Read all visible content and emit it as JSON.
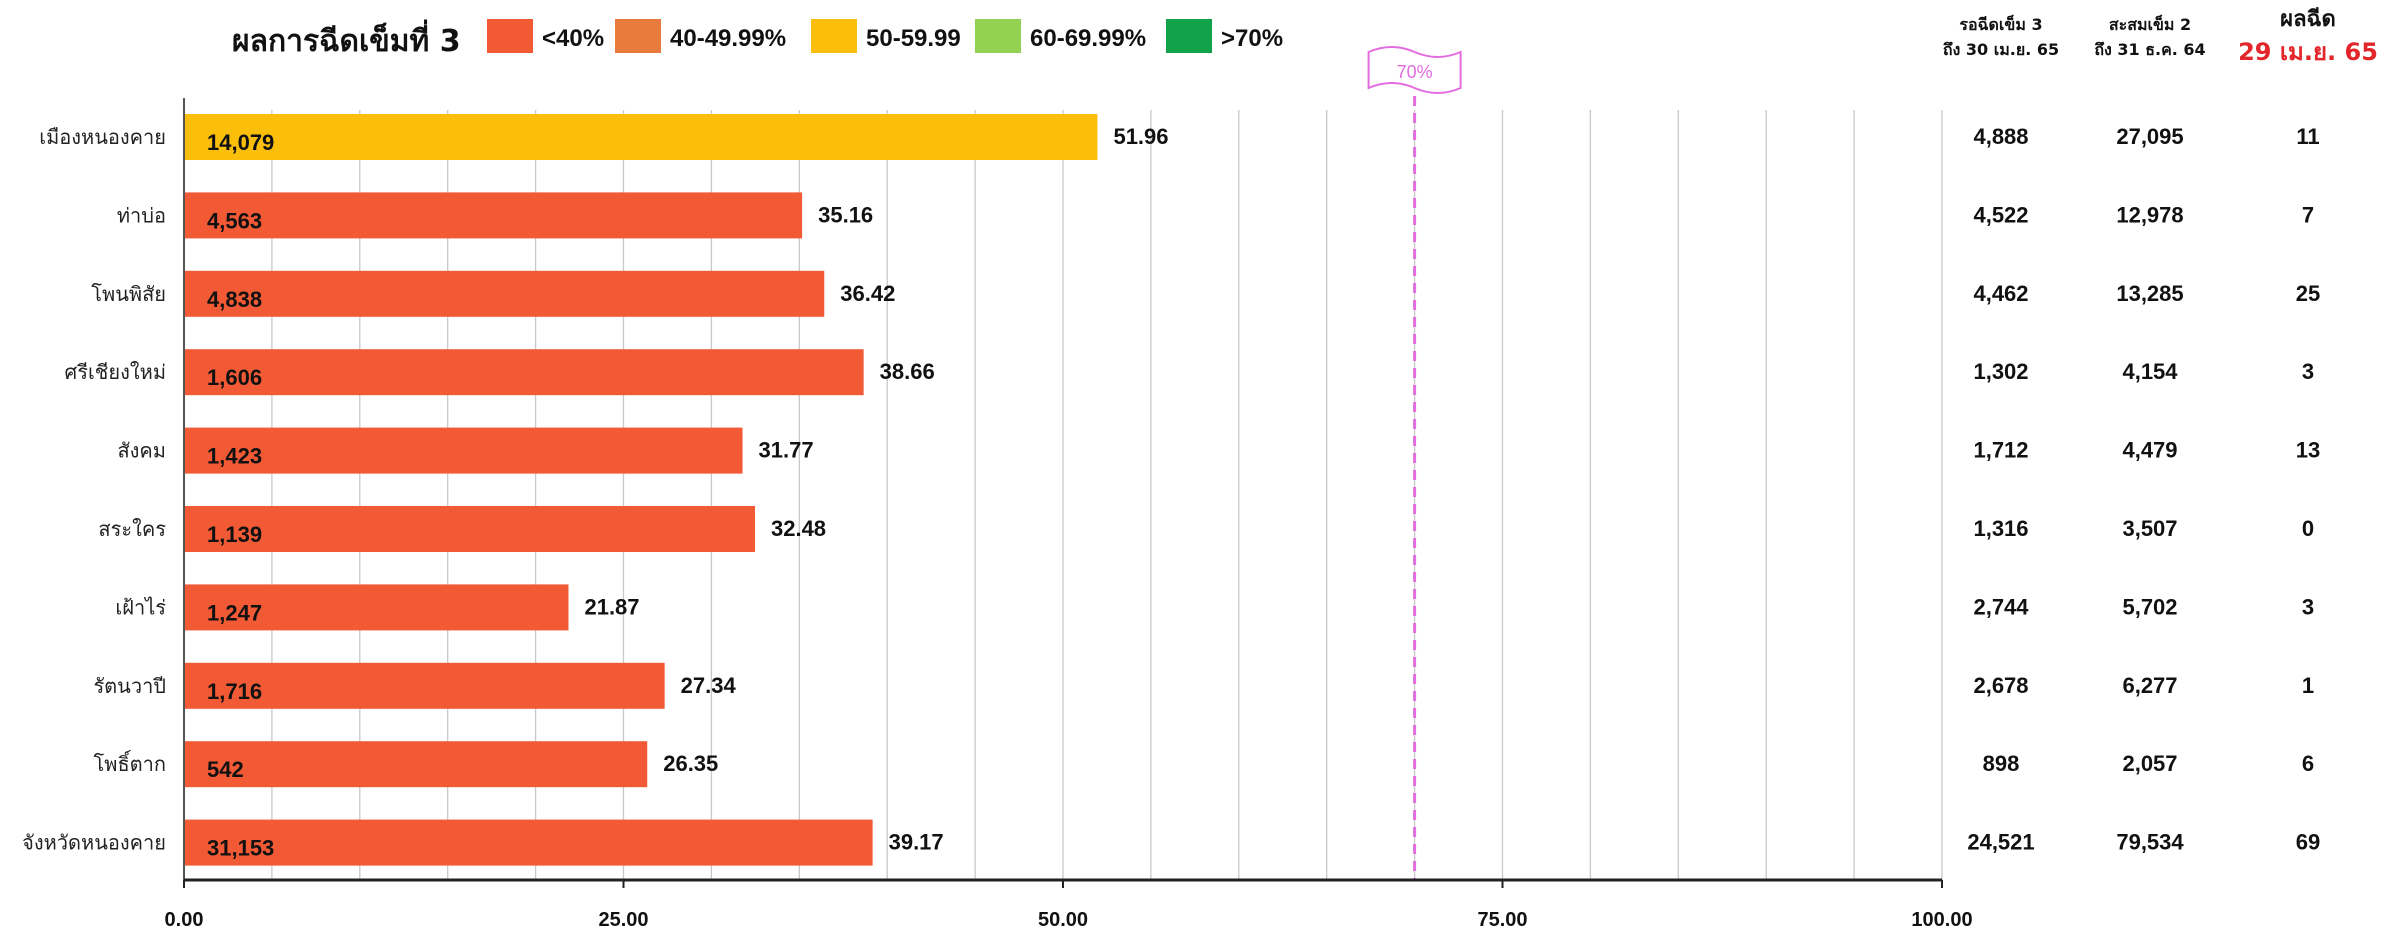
{
  "title": "ผลการฉีดเข็มที่ 3",
  "legend": [
    {
      "label": "<40%",
      "color": "#f15a35"
    },
    {
      "label": "40-49.99%",
      "color": "#e97b3d"
    },
    {
      "label": "50-59.99",
      "color": "#fbbf0b"
    },
    {
      "label": "60-69.99%",
      "color": "#93d153"
    },
    {
      "label": ">70%",
      "color": "#12a34a"
    }
  ],
  "reference_line": {
    "value": 70,
    "label": "70%",
    "color": "#e46be0"
  },
  "columns": {
    "col1": {
      "line1": "รอฉีดเข็ม 3",
      "line2": "ถึง 30 เม.ย. 65"
    },
    "col2": {
      "line1": "สะสมเข็ม 2",
      "line2": "ถึง 31 ธ.ค. 64"
    },
    "col3": {
      "line1": "ผลฉีด",
      "line2": "29 เม.ย. 65"
    }
  },
  "chart_data": {
    "type": "bar",
    "orientation": "horizontal",
    "categories": [
      "เมืองหนองคาย",
      "ท่าบ่อ",
      "โพนพิสัย",
      "ศรีเชียงใหม่",
      "สังคม",
      "สระใคร",
      "เฝ้าไร่",
      "รัตนวาปี",
      "โพธิ์ตาก",
      "จังหวัดหนองคาย"
    ],
    "values": [
      51.96,
      35.16,
      36.42,
      38.66,
      31.77,
      32.48,
      21.87,
      27.34,
      26.35,
      39.17
    ],
    "value_labels": [
      "51.96",
      "35.16",
      "36.42",
      "38.66",
      "31.77",
      "32.48",
      "21.87",
      "27.34",
      "26.35",
      "39.17"
    ],
    "inner_labels": [
      "14,079",
      "4,563",
      "4,838",
      "1,606",
      "1,423",
      "1,139",
      "1,247",
      "1,716",
      "542",
      "31,153"
    ],
    "bar_colors": [
      "#fbbf0b",
      "#f15a35",
      "#f15a35",
      "#f15a35",
      "#f15a35",
      "#f15a35",
      "#f15a35",
      "#f15a35",
      "#f15a35",
      "#f15a35"
    ],
    "xlim": [
      0,
      100
    ],
    "xticks": [
      0,
      25,
      50,
      75,
      100
    ],
    "xtick_labels": [
      "0.00",
      "25.00",
      "50.00",
      "75.00",
      "100.00"
    ],
    "grid": true,
    "table": {
      "col1": [
        "4,888",
        "4,522",
        "4,462",
        "1,302",
        "1,712",
        "1,316",
        "2,744",
        "2,678",
        "898",
        "24,521"
      ],
      "col2": [
        "27,095",
        "12,978",
        "13,285",
        "4,154",
        "4,479",
        "3,507",
        "5,702",
        "6,277",
        "2,057",
        "79,534"
      ],
      "col3": [
        "11",
        "7",
        "25",
        "3",
        "13",
        "0",
        "3",
        "1",
        "6",
        "69"
      ]
    }
  }
}
